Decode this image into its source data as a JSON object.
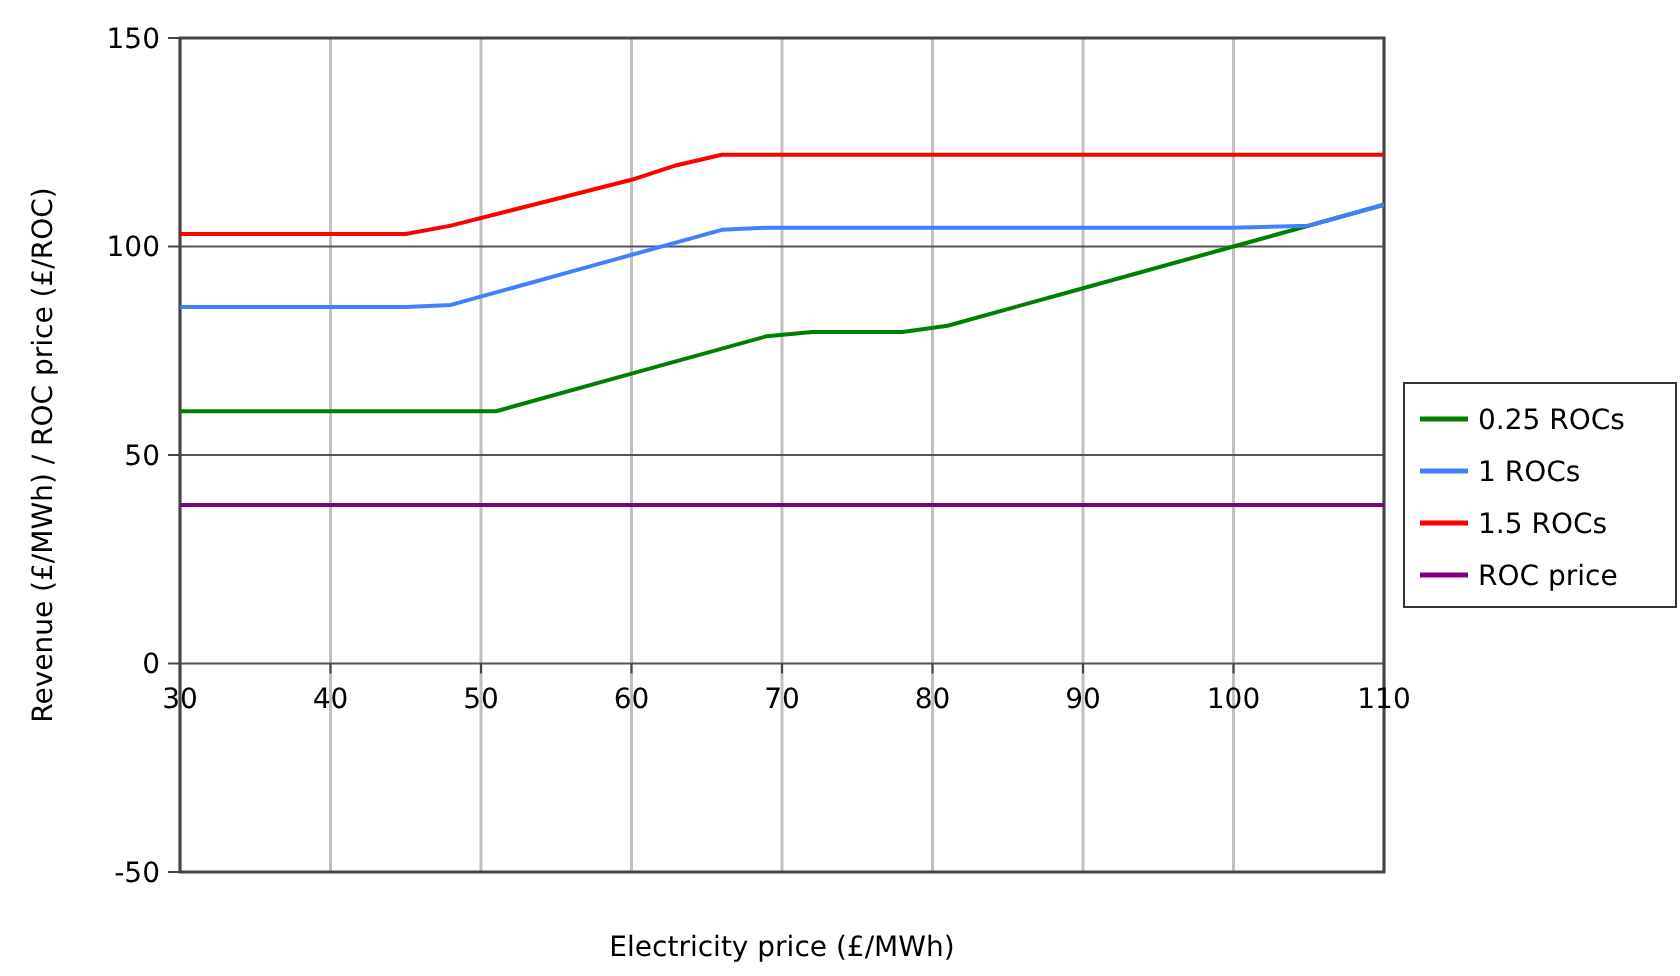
{
  "chart_data": {
    "type": "line",
    "xlabel": "Electricity price (£/MWh)",
    "ylabel": "Revenue (£/MWh) / ROC price (£/ROC)",
    "xlim": [
      30,
      110
    ],
    "xticks": [
      30,
      40,
      50,
      60,
      70,
      80,
      90,
      100,
      110
    ],
    "ylim": [
      -50,
      150
    ],
    "yticks": [
      -50,
      0,
      50,
      100,
      150
    ],
    "grid": true,
    "legend": "right",
    "marker": "none",
    "line_style": "solid",
    "series": [
      {
        "name": "0.25 ROCs",
        "color": "#008000",
        "x": [
          30,
          51,
          60,
          69,
          72,
          78,
          81,
          90,
          100,
          110
        ],
        "values": [
          60.5,
          60.5,
          69.5,
          78.5,
          79.5,
          79.5,
          81,
          90,
          100,
          110
        ]
      },
      {
        "name": "1 ROCs",
        "color": "#4080ff",
        "x": [
          30,
          45,
          48,
          57,
          63,
          66,
          69,
          80,
          100,
          105,
          110
        ],
        "values": [
          85.5,
          85.5,
          86,
          95,
          101,
          104,
          104.5,
          104.5,
          104.5,
          105,
          110
        ]
      },
      {
        "name": "1.5 ROCs",
        "color": "#ff0000",
        "x": [
          30,
          45,
          48,
          54,
          60,
          63,
          66,
          80,
          110
        ],
        "values": [
          103,
          103,
          105,
          110.5,
          116,
          119.5,
          122,
          122,
          122
        ]
      },
      {
        "name": "ROC price",
        "color": "#800080",
        "x": [
          30,
          110
        ],
        "values": [
          38,
          38
        ]
      }
    ]
  }
}
